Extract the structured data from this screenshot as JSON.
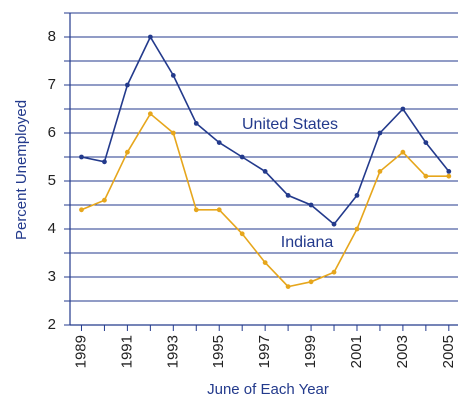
{
  "chart_data": {
    "type": "line",
    "x_label": "June of Each Year",
    "y_label": "Percent Unemployed",
    "x": [
      1989,
      1990,
      1991,
      1992,
      1993,
      1994,
      1995,
      1996,
      1997,
      1998,
      1999,
      2000,
      2001,
      2002,
      2003,
      2004,
      2005
    ],
    "series": [
      {
        "name": "United States",
        "color": "#233a8c",
        "values": [
          5.5,
          5.4,
          7.0,
          8.0,
          7.2,
          6.2,
          5.8,
          5.5,
          5.2,
          4.7,
          4.5,
          4.1,
          4.7,
          6.0,
          6.5,
          5.8,
          5.2
        ]
      },
      {
        "name": "Indiana",
        "color": "#e6a61c",
        "values": [
          4.4,
          4.6,
          5.6,
          6.4,
          6.0,
          4.4,
          4.4,
          3.9,
          3.3,
          2.8,
          2.9,
          3.1,
          4.0,
          5.2,
          5.6,
          5.1,
          5.1
        ]
      }
    ],
    "xlim": [
      1988.5,
      2005.4
    ],
    "xticks": [
      1989,
      1991,
      1993,
      1995,
      1997,
      1999,
      2001,
      2003,
      2005
    ],
    "minor_xticks": [
      1990,
      1992,
      1994,
      1996,
      1998,
      2000,
      2002,
      2004
    ],
    "ylim": [
      2,
      8.5
    ],
    "yticks": [
      2,
      3,
      4,
      5,
      6,
      7,
      8
    ],
    "minor_yticks": [
      2.5,
      3.5,
      4.5,
      5.5,
      6.5,
      7.5,
      8.5
    ],
    "grid": true,
    "grid_color": "#233a8c"
  }
}
